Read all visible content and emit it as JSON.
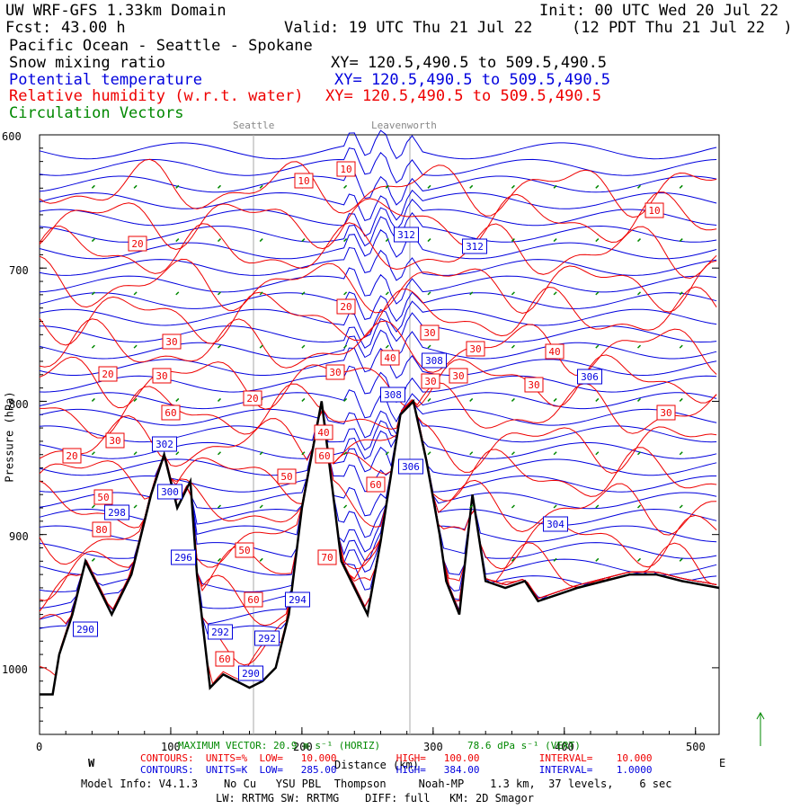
{
  "header": {
    "model": "UW WRF-GFS 1.33km Domain",
    "init": "Init: 00 UTC Wed 20 Jul 22",
    "fcst_label": "Fcst:",
    "fcst_value": "43.00 h",
    "valid": "Valid: 19 UTC Thu 21 Jul 22",
    "valid_local": "(12 PDT Thu 21 Jul 22  )",
    "region": "Pacific Ocean - Seattle - Spokane",
    "fields": [
      {
        "name": "Snow mixing ratio",
        "xy": "XY= 120.5,490.5 to 509.5,490.5",
        "color": "#000000"
      },
      {
        "name": "Potential temperature",
        "xy": "XY= 120.5,490.5 to 509.5,490.5",
        "color": "#0000dd"
      },
      {
        "name": "Relative humidity (w.r.t. water)",
        "xy": "XY= 120.5,490.5 to 509.5,490.5",
        "color": "#ee0000"
      },
      {
        "name": "Circulation Vectors",
        "xy": "",
        "color": "#008800"
      }
    ]
  },
  "places": [
    "Seattle",
    "Leavenworth"
  ],
  "footer": {
    "max_vector": "MAXIMUM VECTOR: 20.9 m s⁻¹ (HORIZ)",
    "max_vector_vert": "78.6 dPa s⁻¹ (VERT)",
    "rh_contours": "CONTOURS:  UNITS=%  LOW=   10.000          HIGH=   100.00          INTERVAL=    10.000",
    "th_contours": "CONTOURS:  UNITS=K  LOW=   285.00          HIGH=   384.00          INTERVAL=    1.0000",
    "west": "W",
    "east": "E",
    "model_info": "Model Info: V4.1.3    No Cu   YSU PBL  Thompson     Noah-MP    1.3 km,  37 levels,    6 sec",
    "model_info2": "LW: RRTMG SW: RRTMG    DIFF: full   KM: 2D Smagor"
  },
  "chart_data": {
    "type": "line",
    "xlabel": "Distance (km)",
    "ylabel": "Pressure (hPa)",
    "xlim": [
      0,
      518
    ],
    "ylim": [
      1050,
      600
    ],
    "x_ticks": [
      "0",
      "100",
      "200",
      "300",
      "400",
      "500"
    ],
    "y_ticks": [
      "600",
      "700",
      "800",
      "900",
      "1000"
    ],
    "colors": {
      "theta": "#0000dd",
      "rh": "#ee0000",
      "vectors": "#008800",
      "terrain": "#000000"
    },
    "theta_contour_labels": [
      "312",
      "312",
      "308",
      "308",
      "306",
      "306",
      "304",
      "302",
      "300",
      "298",
      "296",
      "294",
      "292",
      "292",
      "290",
      "290"
    ],
    "rh_contour_labels": [
      "10",
      "10",
      "10",
      "20",
      "20",
      "20",
      "20",
      "20",
      "30",
      "30",
      "30",
      "30",
      "30",
      "30",
      "30",
      "30",
      "30",
      "30",
      "40",
      "40",
      "40",
      "50",
      "50",
      "50",
      "60",
      "60",
      "60",
      "60",
      "60",
      "70",
      "80"
    ],
    "terrain_surface": {
      "x_km": [
        0,
        10,
        15,
        25,
        35,
        55,
        70,
        85,
        95,
        105,
        115,
        120,
        130,
        140,
        150,
        160,
        170,
        180,
        190,
        200,
        215,
        230,
        250,
        260,
        275,
        285,
        295,
        305,
        310,
        320,
        330,
        340,
        355,
        370,
        380,
        395,
        410,
        430,
        450,
        470,
        490,
        518
      ],
      "pressure_hpa": [
        1020,
        1020,
        990,
        960,
        920,
        960,
        930,
        870,
        840,
        880,
        860,
        930,
        1015,
        1005,
        1010,
        1015,
        1010,
        1000,
        960,
        880,
        800,
        920,
        960,
        905,
        810,
        800,
        845,
        900,
        935,
        960,
        870,
        935,
        940,
        935,
        950,
        945,
        940,
        935,
        930,
        930,
        935,
        940
      ]
    }
  }
}
